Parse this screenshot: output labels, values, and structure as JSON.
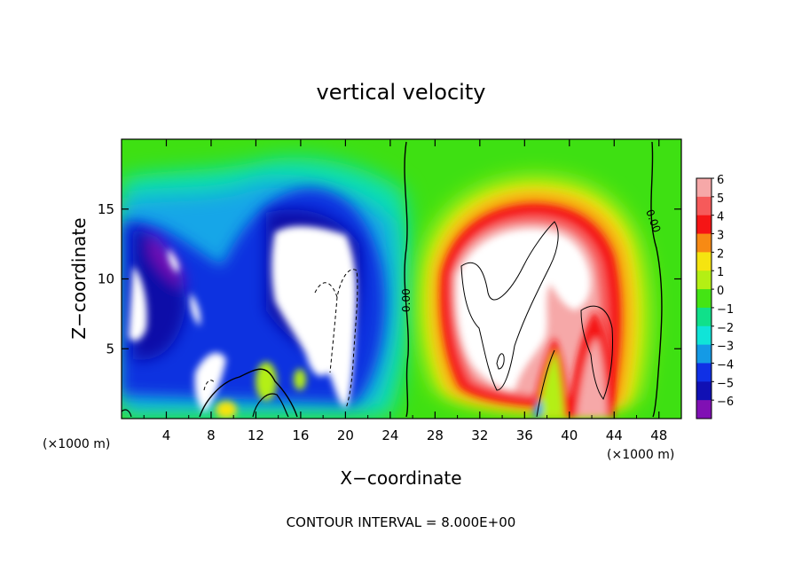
{
  "chart_data": {
    "type": "heatmap",
    "title": "vertical velocity",
    "xlabel": "X−coordinate",
    "ylabel": "Z−coordinate",
    "x_unit_left": "(×1000 m)",
    "x_unit_right": "(×1000 m)",
    "footer": "CONTOUR INTERVAL = 8.000E+00",
    "contour_label": "0.00",
    "xlim": [
      0,
      50
    ],
    "ylim": [
      0,
      20
    ],
    "x_ticks": [
      4,
      8,
      12,
      16,
      20,
      24,
      28,
      32,
      36,
      40,
      44,
      48
    ],
    "x_tick_labels": [
      "4",
      "8",
      "12",
      "16",
      "20",
      "24",
      "28",
      "32",
      "36",
      "40",
      "44",
      "48"
    ],
    "y_ticks": [
      5,
      10,
      15
    ],
    "y_tick_labels": [
      "5",
      "10",
      "15"
    ],
    "colorbar": {
      "min": -6,
      "max": 6,
      "levels": [
        {
          "label": "6",
          "color": "#f6a8a8"
        },
        {
          "label": "5",
          "color": "#f65a5a"
        },
        {
          "label": "4",
          "color": "#f51515"
        },
        {
          "label": "3",
          "color": "#f78a14"
        },
        {
          "label": "2",
          "color": "#f5e410"
        },
        {
          "label": "1",
          "color": "#b4ef14"
        },
        {
          "label": "0",
          "color": "#44e414"
        },
        {
          "label": "−1",
          "color": "#10e08a"
        },
        {
          "label": "−2",
          "color": "#10e4d8"
        },
        {
          "label": "−3",
          "color": "#149ae6"
        },
        {
          "label": "−4",
          "color": "#1030e6"
        },
        {
          "label": "−5",
          "color": "#1010b4"
        },
        {
          "label": "−6",
          "color": "#8010b4"
        }
      ]
    }
  }
}
